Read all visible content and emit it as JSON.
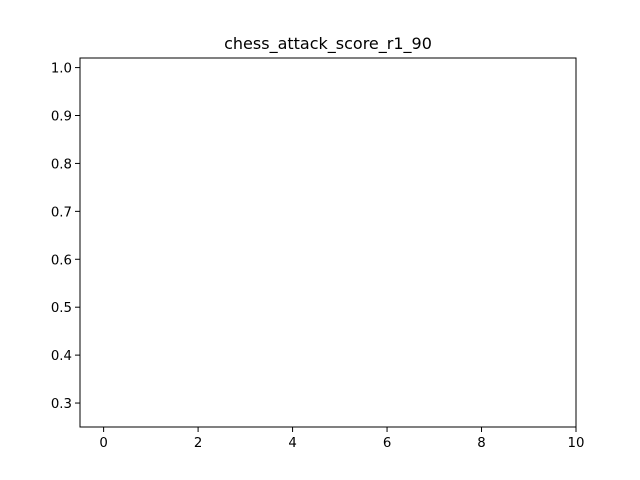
{
  "chart_data": {
    "type": "line",
    "title": "chess_attack_score_r1_90",
    "xlabel": "",
    "ylabel": "",
    "xlim": [
      -0.5,
      10
    ],
    "ylim": [
      0.25,
      1.02
    ],
    "x_ticks": [
      0,
      2,
      4,
      6,
      8,
      10
    ],
    "x_tick_labels": [
      "0",
      "2",
      "4",
      "6",
      "8",
      "10"
    ],
    "y_ticks": [
      0.3,
      0.4,
      0.5,
      0.6,
      0.7,
      0.8,
      0.9,
      1.0
    ],
    "y_tick_labels": [
      "0.3",
      "0.4",
      "0.5",
      "0.6",
      "0.7",
      "0.8",
      "0.9",
      "1.0"
    ],
    "grid": false,
    "legend": "none",
    "series": [
      {
        "x": [],
        "y": [],
        "color": "#1f77b4"
      }
    ]
  }
}
